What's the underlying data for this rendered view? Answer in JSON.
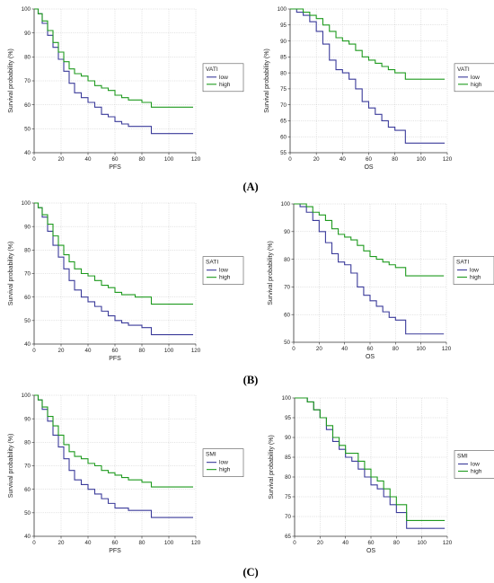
{
  "panel_labels": [
    "(A)",
    "(B)",
    "(C)"
  ],
  "chart_data": [
    {
      "type": "line",
      "panel": "A",
      "xlabel": "PFS",
      "ylabel": "Survival probability (%)",
      "xlim": [
        0,
        120
      ],
      "ylim": [
        40,
        100
      ],
      "xticks": [
        0,
        20,
        40,
        60,
        80,
        100,
        120
      ],
      "yticks": [
        40,
        50,
        60,
        70,
        80,
        90,
        100
      ],
      "grid": true,
      "step": true,
      "legend": {
        "title": "VATI",
        "position": "right"
      },
      "series": [
        {
          "name": "low",
          "color": "#3b3b9a",
          "x": [
            0,
            3,
            6,
            10,
            14,
            18,
            22,
            26,
            30,
            35,
            40,
            45,
            50,
            55,
            60,
            65,
            70,
            75,
            80,
            87,
            118
          ],
          "y": [
            100,
            98,
            94,
            89,
            84,
            79,
            74,
            69,
            65,
            63,
            61,
            59,
            56,
            55,
            53,
            52,
            51,
            51,
            51,
            48,
            48
          ]
        },
        {
          "name": "high",
          "color": "#1e9a1e",
          "x": [
            0,
            3,
            6,
            10,
            14,
            18,
            22,
            26,
            30,
            35,
            40,
            45,
            50,
            55,
            60,
            65,
            70,
            75,
            80,
            87,
            118
          ],
          "y": [
            100,
            98,
            95,
            91,
            86,
            82,
            78,
            75,
            73,
            72,
            70,
            68,
            67,
            66,
            64,
            63,
            62,
            62,
            61,
            59,
            59
          ]
        }
      ]
    },
    {
      "type": "line",
      "panel": "A",
      "xlabel": "OS",
      "ylabel": "Survival probability (%)",
      "xlim": [
        0,
        120
      ],
      "ylim": [
        55,
        100
      ],
      "xticks": [
        0,
        20,
        40,
        60,
        80,
        100,
        120
      ],
      "yticks": [
        55,
        60,
        65,
        70,
        75,
        80,
        85,
        90,
        95,
        100
      ],
      "grid": true,
      "step": true,
      "legend": {
        "title": "VATI",
        "position": "right"
      },
      "series": [
        {
          "name": "low",
          "color": "#3b3b9a",
          "x": [
            0,
            5,
            10,
            15,
            20,
            25,
            30,
            35,
            40,
            45,
            50,
            55,
            60,
            65,
            70,
            75,
            80,
            88,
            118
          ],
          "y": [
            100,
            99,
            98,
            96,
            93,
            89,
            84,
            81,
            80,
            78,
            75,
            71,
            69,
            67,
            65,
            63,
            62,
            58,
            58
          ]
        },
        {
          "name": "high",
          "color": "#1e9a1e",
          "x": [
            0,
            5,
            10,
            15,
            20,
            25,
            30,
            35,
            40,
            45,
            50,
            55,
            60,
            65,
            70,
            75,
            80,
            88,
            118
          ],
          "y": [
            100,
            100,
            99,
            98,
            97,
            95,
            93,
            91,
            90,
            89,
            87,
            85,
            84,
            83,
            82,
            81,
            80,
            78,
            78
          ]
        }
      ]
    },
    {
      "type": "line",
      "panel": "B",
      "xlabel": "PFS",
      "ylabel": "Survival probability (%)",
      "xlim": [
        0,
        120
      ],
      "ylim": [
        40,
        100
      ],
      "xticks": [
        0,
        20,
        40,
        60,
        80,
        100,
        120
      ],
      "yticks": [
        40,
        50,
        60,
        70,
        80,
        90,
        100
      ],
      "grid": true,
      "step": true,
      "legend": {
        "title": "SATI",
        "position": "right"
      },
      "series": [
        {
          "name": "low",
          "color": "#3b3b9a",
          "x": [
            0,
            3,
            6,
            10,
            14,
            18,
            22,
            26,
            30,
            35,
            40,
            45,
            50,
            55,
            60,
            65,
            70,
            75,
            80,
            87,
            118
          ],
          "y": [
            100,
            98,
            94,
            88,
            82,
            77,
            72,
            67,
            63,
            60,
            58,
            56,
            54,
            52,
            50,
            49,
            48,
            48,
            47,
            44,
            44
          ]
        },
        {
          "name": "high",
          "color": "#1e9a1e",
          "x": [
            0,
            3,
            6,
            10,
            14,
            18,
            22,
            26,
            30,
            35,
            40,
            45,
            50,
            55,
            60,
            65,
            70,
            75,
            80,
            87,
            118
          ],
          "y": [
            100,
            98,
            95,
            91,
            86,
            82,
            78,
            75,
            72,
            70,
            69,
            67,
            65,
            64,
            62,
            61,
            61,
            60,
            60,
            57,
            57
          ]
        }
      ]
    },
    {
      "type": "line",
      "panel": "B",
      "xlabel": "OS",
      "ylabel": "Survival probability (%)",
      "xlim": [
        0,
        120
      ],
      "ylim": [
        50,
        100
      ],
      "xticks": [
        0,
        20,
        40,
        60,
        80,
        100,
        120
      ],
      "yticks": [
        50,
        60,
        70,
        80,
        90,
        100
      ],
      "grid": true,
      "step": true,
      "legend": {
        "title": "SATI",
        "position": "right"
      },
      "series": [
        {
          "name": "low",
          "color": "#3b3b9a",
          "x": [
            0,
            5,
            10,
            15,
            20,
            25,
            30,
            35,
            40,
            45,
            50,
            55,
            60,
            65,
            70,
            75,
            80,
            88,
            118
          ],
          "y": [
            100,
            99,
            97,
            94,
            90,
            86,
            82,
            79,
            78,
            75,
            70,
            67,
            65,
            63,
            61,
            59,
            58,
            53,
            53
          ]
        },
        {
          "name": "high",
          "color": "#1e9a1e",
          "x": [
            0,
            5,
            10,
            15,
            20,
            25,
            30,
            35,
            40,
            45,
            50,
            55,
            60,
            65,
            70,
            75,
            80,
            88,
            118
          ],
          "y": [
            100,
            100,
            99,
            97,
            96,
            94,
            91,
            89,
            88,
            87,
            85,
            83,
            81,
            80,
            79,
            78,
            77,
            74,
            74
          ]
        }
      ]
    },
    {
      "type": "line",
      "panel": "C",
      "xlabel": "PFS",
      "ylabel": "Survival probability (%)",
      "xlim": [
        0,
        120
      ],
      "ylim": [
        40,
        100
      ],
      "xticks": [
        0,
        20,
        40,
        60,
        80,
        100,
        120
      ],
      "yticks": [
        40,
        50,
        60,
        70,
        80,
        90,
        100
      ],
      "grid": true,
      "step": true,
      "legend": {
        "title": "SMI",
        "position": "right"
      },
      "series": [
        {
          "name": "low",
          "color": "#3b3b9a",
          "x": [
            0,
            3,
            6,
            10,
            14,
            18,
            22,
            26,
            30,
            35,
            40,
            45,
            50,
            55,
            60,
            65,
            70,
            75,
            80,
            87,
            118
          ],
          "y": [
            100,
            98,
            94,
            89,
            83,
            78,
            73,
            68,
            64,
            62,
            60,
            58,
            56,
            54,
            52,
            52,
            51,
            51,
            51,
            48,
            48
          ]
        },
        {
          "name": "high",
          "color": "#1e9a1e",
          "x": [
            0,
            3,
            6,
            10,
            14,
            18,
            22,
            26,
            30,
            35,
            40,
            45,
            50,
            55,
            60,
            65,
            70,
            75,
            80,
            87,
            118
          ],
          "y": [
            100,
            98,
            95,
            91,
            87,
            83,
            79,
            76,
            74,
            73,
            71,
            70,
            68,
            67,
            66,
            65,
            64,
            64,
            63,
            61,
            61
          ]
        }
      ]
    },
    {
      "type": "line",
      "panel": "C",
      "xlabel": "OS",
      "ylabel": "Survival probability (%)",
      "xlim": [
        0,
        120
      ],
      "ylim": [
        65,
        100
      ],
      "xticks": [
        0,
        20,
        40,
        60,
        80,
        100,
        120
      ],
      "yticks": [
        65,
        70,
        75,
        80,
        85,
        90,
        95,
        100
      ],
      "grid": true,
      "step": true,
      "legend": {
        "title": "SMI",
        "position": "right"
      },
      "series": [
        {
          "name": "low",
          "color": "#3b3b9a",
          "x": [
            0,
            5,
            10,
            15,
            20,
            25,
            30,
            35,
            40,
            45,
            50,
            55,
            60,
            65,
            70,
            75,
            80,
            88,
            118
          ],
          "y": [
            100,
            100,
            99,
            97,
            95,
            92,
            89,
            87,
            85,
            84,
            82,
            80,
            78,
            77,
            75,
            73,
            71,
            67,
            67
          ]
        },
        {
          "name": "high",
          "color": "#1e9a1e",
          "x": [
            0,
            5,
            10,
            15,
            20,
            25,
            30,
            35,
            40,
            45,
            50,
            55,
            60,
            65,
            70,
            75,
            80,
            88,
            118
          ],
          "y": [
            100,
            100,
            99,
            97,
            95,
            93,
            90,
            88,
            86,
            86,
            84,
            82,
            80,
            79,
            77,
            75,
            73,
            69,
            69
          ]
        }
      ]
    }
  ]
}
